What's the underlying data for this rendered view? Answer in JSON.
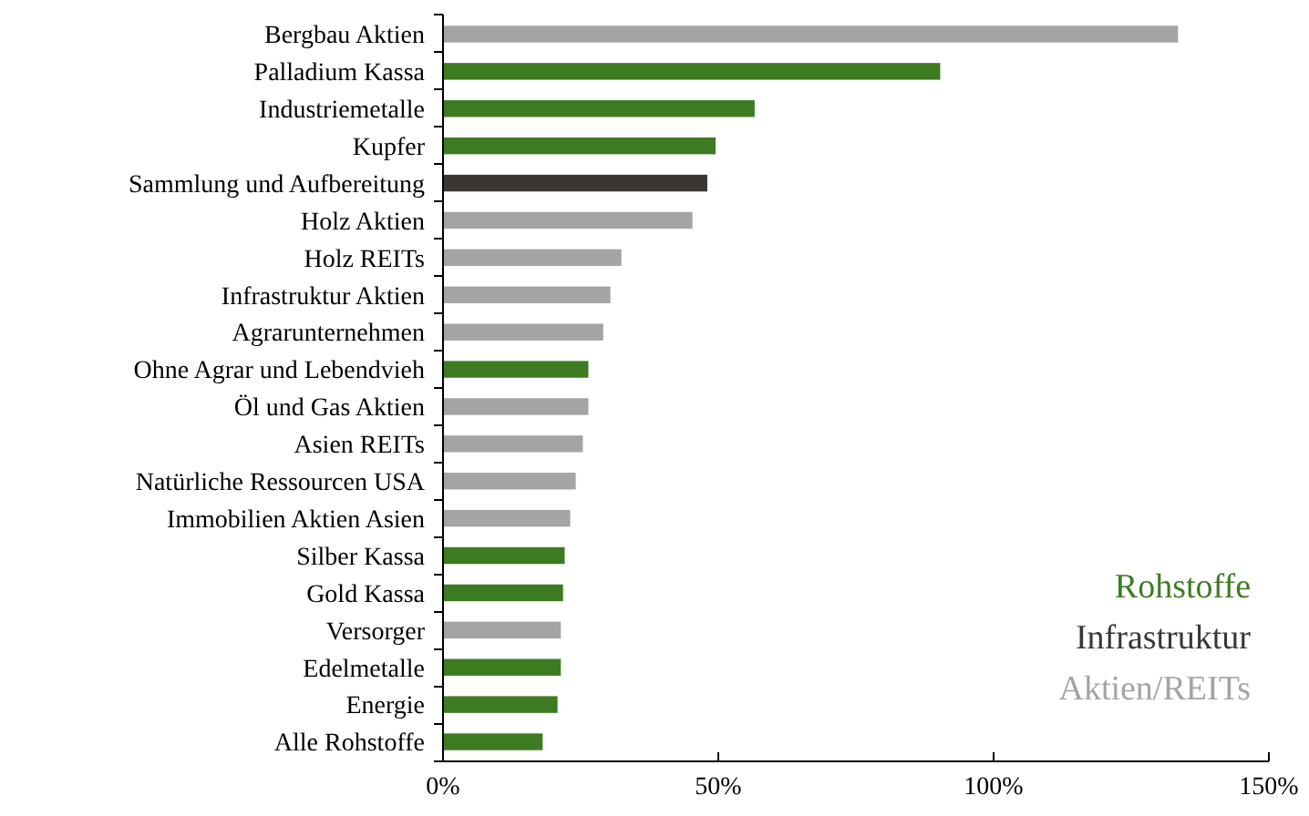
{
  "chart_data": {
    "type": "bar",
    "orientation": "horizontal",
    "categories": [
      "Bergbau Aktien",
      "Palladium Kassa",
      "Industriemetalle",
      "Kupfer",
      "Sammlung und Aufbereitung",
      "Holz Aktien",
      "Holz REITs",
      "Infrastruktur Aktien",
      "Agrarunternehmen",
      "Ohne Agrar und Lebendvieh",
      "Öl und Gas Aktien",
      "Asien REITs",
      "Natürliche Ressourcen USA",
      "Immobilien Aktien Asien",
      "Silber Kassa",
      "Gold Kassa",
      "Versorger",
      "Edelmetalle",
      "Energie",
      "Alle Rohstoffe"
    ],
    "series": [
      {
        "name": "Rohstoffe",
        "color": "#3d7b22",
        "values": [
          null,
          90.3,
          56.6,
          49.5,
          null,
          null,
          null,
          null,
          null,
          26.4,
          null,
          null,
          null,
          null,
          22.1,
          21.8,
          null,
          21.4,
          20.8,
          18.1
        ]
      },
      {
        "name": "Infrastruktur",
        "color": "#3a3634",
        "values": [
          null,
          null,
          null,
          null,
          48,
          null,
          null,
          null,
          null,
          null,
          null,
          null,
          null,
          null,
          null,
          null,
          null,
          null,
          null,
          null
        ]
      },
      {
        "name": "Aktien/REITs",
        "color": "#a3a4a4",
        "values": [
          133.5,
          null,
          null,
          null,
          null,
          45.3,
          32.4,
          30.4,
          29.1,
          null,
          26.4,
          25.4,
          24.1,
          23.1,
          null,
          null,
          21.4,
          null,
          null,
          null
        ]
      }
    ],
    "xlim": [
      0,
      150
    ],
    "xticks": [
      {
        "value": 0,
        "label": "0%"
      },
      {
        "value": 50,
        "label": "50%"
      },
      {
        "value": 100,
        "label": "100%"
      },
      {
        "value": 150,
        "label": "150%"
      }
    ],
    "grid": false,
    "legend": "bottom right"
  }
}
